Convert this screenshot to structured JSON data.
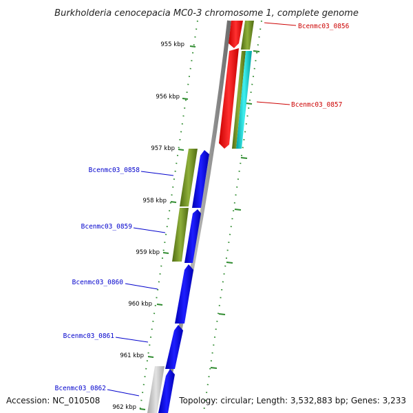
{
  "title": "Burkholderia cenocepacia MC0-3 chromosome 1, complete genome",
  "accession": "Accession: NC_010508",
  "topology": "Topology: circular; Length: 3,532,883 bp; Genes: 3,233",
  "kbp_labels": [
    "955 kbp",
    "956 kbp",
    "957 kbp",
    "958 kbp",
    "959 kbp",
    "960 kbp",
    "961 kbp",
    "962 kbp"
  ],
  "genes": [
    {
      "id": "Bcenmc03_0856",
      "color": "#cc0000"
    },
    {
      "id": "Bcenmc03_0857",
      "color": "#cc0000"
    },
    {
      "id": "Bcenmc03_0858",
      "color": "#0000cc"
    },
    {
      "id": "Bcenmc03_0859",
      "color": "#0000cc"
    },
    {
      "id": "Bcenmc03_0860",
      "color": "#0000cc"
    },
    {
      "id": "Bcenmc03_0861",
      "color": "#0000cc"
    },
    {
      "id": "Bcenmc03_0862",
      "color": "#0000cc"
    }
  ],
  "colors": {
    "forward_strand_cds": "#ff0000",
    "reverse_strand_cds": "#0000ff",
    "cog_olive": "#6b8e23",
    "cog_cyan": "#00c8c8",
    "backbone": "#888888",
    "scale_ticks": "#2e8b2e"
  }
}
